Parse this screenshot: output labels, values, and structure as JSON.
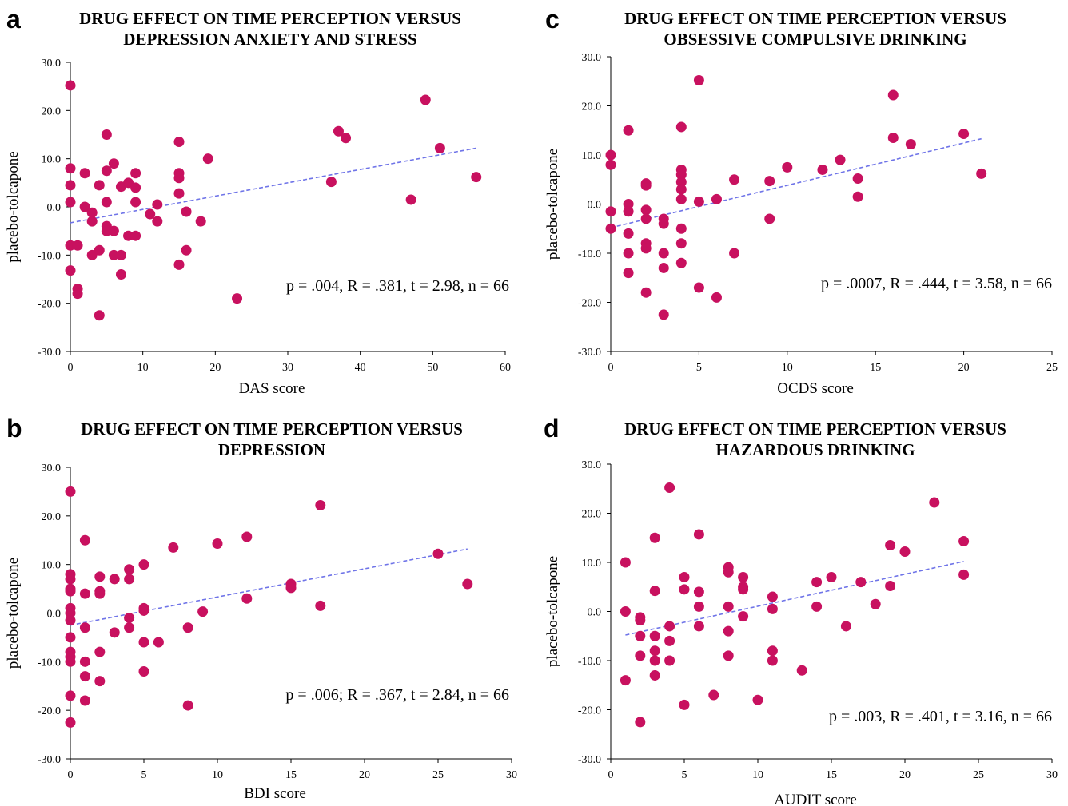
{
  "chart_data": [
    {
      "id": "a",
      "letter": "a",
      "type": "scatter",
      "title_lines": [
        "DRUG EFFECT ON TIME PERCEPTION VERSUS",
        "DEPRESSION ANXIETY AND STRESS"
      ],
      "xlabel": "DAS score",
      "ylabel": "placebo-tolcapone",
      "xlim": [
        0,
        60
      ],
      "ylim": [
        -30,
        30
      ],
      "xticks": [
        "0",
        "10",
        "20",
        "30",
        "40",
        "50",
        "60"
      ],
      "yticks": [
        "30.0",
        "20.0",
        "10.0",
        "0.0",
        "-10.0",
        "-20.0",
        "-30.0"
      ],
      "annotation": "p = .004, R = .381, t = 2.98, n = 66",
      "trend": {
        "x": [
          0,
          56
        ],
        "y": [
          -3.3,
          12.2
        ]
      },
      "points": [
        [
          0,
          25.2
        ],
        [
          0,
          8
        ],
        [
          0,
          4.5
        ],
        [
          0,
          1
        ],
        [
          0,
          -8
        ],
        [
          0,
          -13.2
        ],
        [
          1,
          -17
        ],
        [
          1,
          -18
        ],
        [
          1,
          -8
        ],
        [
          2,
          7
        ],
        [
          2,
          0
        ],
        [
          3,
          -1.2
        ],
        [
          3,
          -3
        ],
        [
          3,
          -10
        ],
        [
          4,
          4.5
        ],
        [
          4,
          -9
        ],
        [
          4,
          -22.5
        ],
        [
          5,
          15
        ],
        [
          5,
          7.5
        ],
        [
          5,
          1
        ],
        [
          5,
          -4
        ],
        [
          5,
          -5
        ],
        [
          6,
          9
        ],
        [
          6,
          -5
        ],
        [
          6,
          -10
        ],
        [
          7,
          4.2
        ],
        [
          7,
          -10
        ],
        [
          7,
          -14
        ],
        [
          8,
          5
        ],
        [
          8,
          -6
        ],
        [
          9,
          7
        ],
        [
          9,
          4
        ],
        [
          9,
          1
        ],
        [
          9,
          -6
        ],
        [
          11,
          -1.5
        ],
        [
          12,
          0.5
        ],
        [
          12,
          -3
        ],
        [
          15,
          13.5
        ],
        [
          15,
          7
        ],
        [
          15,
          6
        ],
        [
          15,
          2.8
        ],
        [
          15,
          -12
        ],
        [
          16,
          -1
        ],
        [
          16,
          -9
        ],
        [
          18,
          -3
        ],
        [
          19,
          10
        ],
        [
          23,
          -19
        ],
        [
          36,
          5.2
        ],
        [
          37,
          15.7
        ],
        [
          38,
          14.3
        ],
        [
          47,
          1.5
        ],
        [
          49,
          22.2
        ],
        [
          51,
          12.2
        ],
        [
          56,
          6.2
        ]
      ]
    },
    {
      "id": "b",
      "letter": "b",
      "type": "scatter",
      "title_lines": [
        "DRUG EFFECT ON TIME PERCEPTION VERSUS",
        "DEPRESSION"
      ],
      "xlabel": "BDI score",
      "ylabel": "placebo-tolcapone",
      "xlim": [
        0,
        30
      ],
      "ylim": [
        -30,
        30
      ],
      "xticks": [
        "0",
        "5",
        "10",
        "15",
        "20",
        "25",
        "30"
      ],
      "yticks": [
        "30.0",
        "20.0",
        "10.0",
        "0.0",
        "-10.0",
        "-20.0",
        "-30.0"
      ],
      "annotation": "p = .006; R = .367, t = 2.84, n = 66",
      "trend": {
        "x": [
          0,
          27
        ],
        "y": [
          -2.5,
          13.2
        ]
      },
      "points": [
        [
          0,
          25
        ],
        [
          0,
          8
        ],
        [
          0,
          7
        ],
        [
          0,
          5
        ],
        [
          0,
          4.5
        ],
        [
          0,
          1
        ],
        [
          0,
          0
        ],
        [
          0,
          -1.5
        ],
        [
          0,
          -5
        ],
        [
          0,
          -8
        ],
        [
          0,
          -9
        ],
        [
          0,
          -10
        ],
        [
          0,
          -17
        ],
        [
          0,
          -22.5
        ],
        [
          1,
          15
        ],
        [
          1,
          4
        ],
        [
          1,
          -3
        ],
        [
          1,
          -10
        ],
        [
          1,
          -13
        ],
        [
          1,
          -18
        ],
        [
          2,
          7.5
        ],
        [
          2,
          4.5
        ],
        [
          2,
          4
        ],
        [
          2,
          -8
        ],
        [
          2,
          -14
        ],
        [
          3,
          7
        ],
        [
          3,
          -4
        ],
        [
          4,
          9
        ],
        [
          4,
          7
        ],
        [
          4,
          -1
        ],
        [
          4,
          -3
        ],
        [
          5,
          10
        ],
        [
          5,
          1
        ],
        [
          5,
          0.5
        ],
        [
          5,
          -6
        ],
        [
          5,
          -12
        ],
        [
          6,
          -6
        ],
        [
          7,
          13.5
        ],
        [
          8,
          -3
        ],
        [
          8,
          -19
        ],
        [
          9,
          0.3
        ],
        [
          10,
          14.3
        ],
        [
          12,
          15.7
        ],
        [
          12,
          3
        ],
        [
          15,
          6
        ],
        [
          15,
          5.2
        ],
        [
          17,
          22.2
        ],
        [
          17,
          1.5
        ],
        [
          25,
          12.2
        ],
        [
          27,
          6
        ]
      ]
    },
    {
      "id": "c",
      "letter": "c",
      "type": "scatter",
      "title_lines": [
        "DRUG EFFECT ON TIME PERCEPTION VERSUS",
        "OBSESSIVE COMPULSIVE DRINKING"
      ],
      "xlabel": "OCDS score",
      "ylabel": "placebo-tolcapone",
      "xlim": [
        0,
        25
      ],
      "ylim": [
        -30,
        30
      ],
      "xticks": [
        "0",
        "5",
        "10",
        "15",
        "20",
        "25"
      ],
      "yticks": [
        "30.0",
        "20.0",
        "10.0",
        "0.0",
        "-10.0",
        "-20.0",
        "-30.0"
      ],
      "annotation": "p = .0007, R = .444, t = 3.58, n = 66",
      "trend": {
        "x": [
          0,
          21
        ],
        "y": [
          -4.8,
          13.3
        ]
      },
      "points": [
        [
          0,
          10
        ],
        [
          0,
          8
        ],
        [
          0,
          -1.5
        ],
        [
          0,
          -5
        ],
        [
          1,
          15
        ],
        [
          1,
          0
        ],
        [
          1,
          -1.5
        ],
        [
          1,
          -6
        ],
        [
          1,
          -10
        ],
        [
          1,
          -14
        ],
        [
          2,
          4.2
        ],
        [
          2,
          3.8
        ],
        [
          2,
          -1.2
        ],
        [
          2,
          -3
        ],
        [
          2,
          -8
        ],
        [
          2,
          -9
        ],
        [
          2,
          -18
        ],
        [
          3,
          -3
        ],
        [
          3,
          -4
        ],
        [
          3,
          -10
        ],
        [
          3,
          -13
        ],
        [
          3,
          -22.5
        ],
        [
          4,
          15.7
        ],
        [
          4,
          7
        ],
        [
          4,
          6
        ],
        [
          4,
          4.5
        ],
        [
          4,
          3
        ],
        [
          4,
          1
        ],
        [
          4,
          -5
        ],
        [
          4,
          -8
        ],
        [
          4,
          -12
        ],
        [
          5,
          25.2
        ],
        [
          5,
          0.5
        ],
        [
          5,
          -17
        ],
        [
          6,
          1
        ],
        [
          6,
          -19
        ],
        [
          7,
          5
        ],
        [
          7,
          -10
        ],
        [
          9,
          4.7
        ],
        [
          9,
          -3
        ],
        [
          10,
          7.5
        ],
        [
          12,
          7
        ],
        [
          13,
          9
        ],
        [
          14,
          5.2
        ],
        [
          14,
          1.5
        ],
        [
          16,
          22.2
        ],
        [
          16,
          13.5
        ],
        [
          17,
          12.2
        ],
        [
          20,
          14.3
        ],
        [
          21,
          6.2
        ]
      ]
    },
    {
      "id": "d",
      "letter": "d",
      "type": "scatter",
      "title_lines": [
        "DRUG EFFECT ON TIME PERCEPTION VERSUS",
        "HAZARDOUS DRINKING"
      ],
      "xlabel": "AUDIT score",
      "ylabel": "placebo-tolcapone",
      "xlim": [
        0,
        30
      ],
      "ylim": [
        -30,
        30
      ],
      "xticks": [
        "0",
        "5",
        "10",
        "15",
        "20",
        "25",
        "30"
      ],
      "yticks": [
        "30.0",
        "20.0",
        "10.0",
        "0.0",
        "-10.0",
        "-20.0",
        "-30.0"
      ],
      "annotation": "p = .003, R = .401, t = 3.16, n = 66",
      "trend": {
        "x": [
          1,
          24
        ],
        "y": [
          -4.8,
          10.2
        ]
      },
      "points": [
        [
          1,
          10
        ],
        [
          1,
          0
        ],
        [
          1,
          -14
        ],
        [
          2,
          -1.2
        ],
        [
          2,
          -1.8
        ],
        [
          2,
          -5
        ],
        [
          2,
          -9
        ],
        [
          2,
          -22.5
        ],
        [
          3,
          15
        ],
        [
          3,
          4.2
        ],
        [
          3,
          -5
        ],
        [
          3,
          -8
        ],
        [
          3,
          -10
        ],
        [
          3,
          -13
        ],
        [
          4,
          25.2
        ],
        [
          4,
          -3
        ],
        [
          4,
          -6
        ],
        [
          4,
          -10
        ],
        [
          5,
          7
        ],
        [
          5,
          4.5
        ],
        [
          5,
          -19
        ],
        [
          6,
          15.7
        ],
        [
          6,
          4
        ],
        [
          6,
          1
        ],
        [
          6,
          -3
        ],
        [
          7,
          -17
        ],
        [
          8,
          9
        ],
        [
          8,
          8
        ],
        [
          8,
          1
        ],
        [
          8,
          -4
        ],
        [
          8,
          -9
        ],
        [
          9,
          7
        ],
        [
          9,
          5
        ],
        [
          9,
          4.5
        ],
        [
          9,
          -1
        ],
        [
          10,
          -18
        ],
        [
          11,
          3
        ],
        [
          11,
          0.5
        ],
        [
          11,
          -8
        ],
        [
          11,
          -10
        ],
        [
          13,
          -12
        ],
        [
          14,
          6
        ],
        [
          14,
          1
        ],
        [
          15,
          7
        ],
        [
          16,
          -3
        ],
        [
          17,
          6
        ],
        [
          18,
          1.5
        ],
        [
          19,
          13.5
        ],
        [
          19,
          5.2
        ],
        [
          20,
          12.2
        ],
        [
          22,
          22.2
        ],
        [
          24,
          14.3
        ],
        [
          24,
          7.5
        ]
      ]
    }
  ],
  "colors": {
    "point": "#c8115f",
    "trend": "#6f74e8",
    "axis": "#000000",
    "text": "#000000"
  }
}
